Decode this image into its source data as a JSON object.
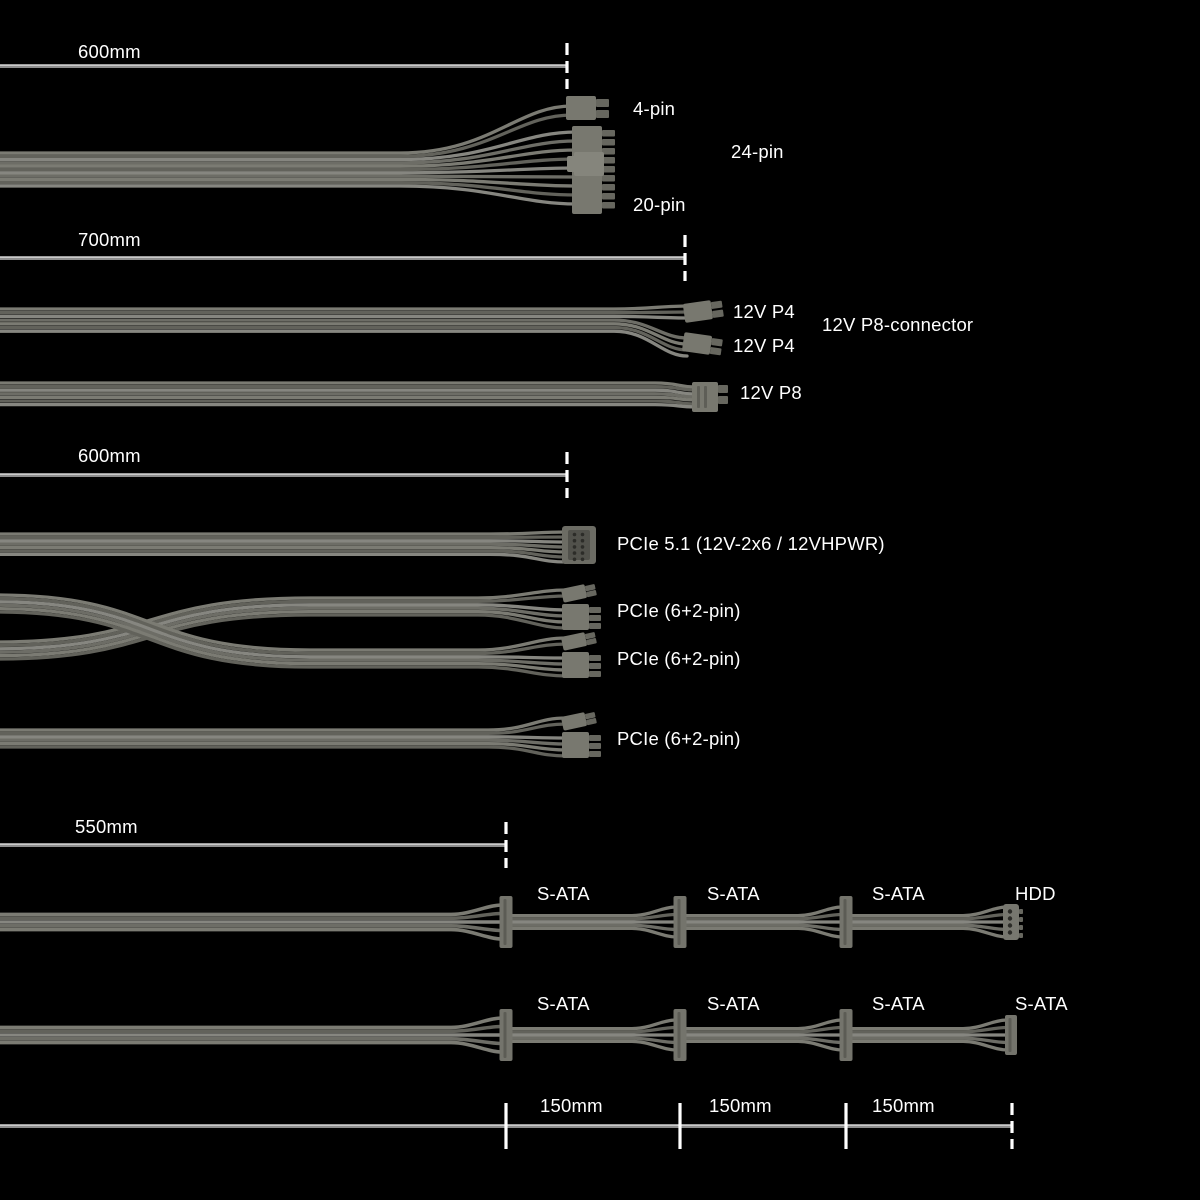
{
  "labels": {
    "len_atx": "600mm",
    "pin4": "4-pin",
    "pin24": "24-pin",
    "pin20": "20-pin",
    "len_cpu": "700mm",
    "p4a": "12V P4",
    "p4b": "12V P4",
    "p8note": "12V P8-connector",
    "p8": "12V P8",
    "len_pcie": "600mm",
    "pcie5": "PCIe 5.1 (12V-2x6 / 12VHPWR)",
    "pcie_a": "PCIe (6+2-pin)",
    "pcie_b": "PCIe (6+2-pin)",
    "pcie_c": "PCIe (6+2-pin)",
    "len_sata": "550mm",
    "chain1": [
      "S-ATA",
      "S-ATA",
      "S-ATA",
      "HDD"
    ],
    "chain2": [
      "S-ATA",
      "S-ATA",
      "S-ATA",
      "S-ATA"
    ],
    "seg150_1": "150mm",
    "seg150_2": "150mm",
    "seg150_3": "150mm"
  },
  "colors": {
    "background": "#000000",
    "cable_gray": "#6f6f68",
    "connector_gray": "#78786f",
    "measure_line_gray": "#8d8d8d",
    "tick_white": "#ffffff",
    "label_white": "#ffffff"
  }
}
